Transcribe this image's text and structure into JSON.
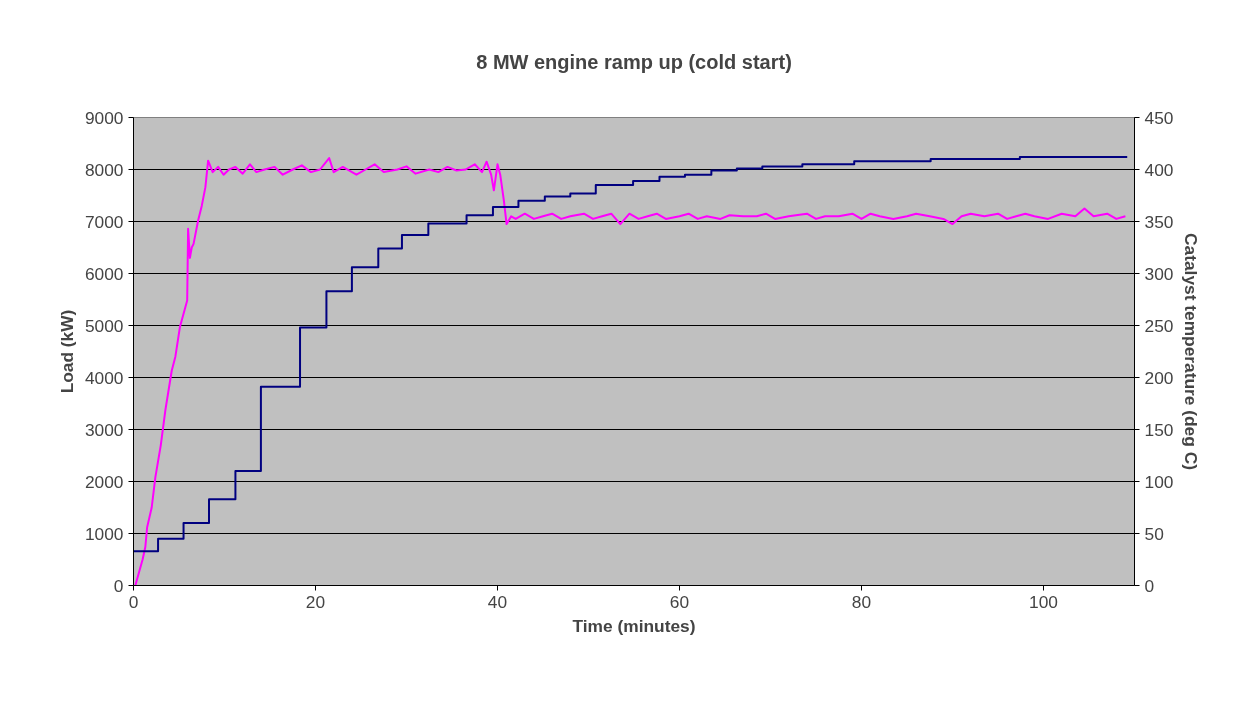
{
  "chart_data": {
    "type": "line",
    "title": "8 MW engine ramp up (cold start)",
    "xlabel": "Time (minutes)",
    "ylabel": "Load (kW)",
    "y2label": "Catalyst temperature (deg C)",
    "xlim": [
      0,
      110
    ],
    "xticks": [
      0,
      20,
      40,
      60,
      80,
      100
    ],
    "ylim": [
      0,
      9000
    ],
    "yticks": [
      0,
      1000,
      2000,
      3000,
      4000,
      5000,
      6000,
      7000,
      8000,
      9000
    ],
    "y2lim": [
      0,
      450
    ],
    "y2ticks": [
      0,
      50,
      100,
      150,
      200,
      250,
      300,
      350,
      400,
      450
    ],
    "grid": "y",
    "marker": "none",
    "line_style": "solid",
    "series": [
      {
        "color": "#ff00ff",
        "x": [
          0.2,
          0.6,
          1.0,
          1.3,
          1.5,
          2.0,
          2.4,
          3.0,
          3.5,
          4.2,
          4.6,
          5.1,
          5.9,
          6.0,
          6.2,
          6.4,
          6.6,
          7.1,
          7.5,
          7.9,
          8.2,
          8.7,
          9.3,
          9.9,
          10.5,
          11.2,
          12.0,
          12.8,
          13.5,
          14.4,
          15.5,
          16.4,
          17.5,
          18.5,
          19.5,
          20.5,
          21.5,
          22.0,
          23.0,
          24.5,
          25.5,
          26.5,
          27.5,
          29.0,
          30.0,
          31.0,
          32.5,
          33.5,
          34.5,
          35.5,
          36.5,
          37.5,
          38.3,
          38.8,
          39.3,
          39.6,
          40.0,
          40.3,
          40.7,
          41.0,
          41.5,
          42.0,
          43.0,
          44.0,
          45.0,
          46.0,
          47.0,
          48.0,
          49.5,
          50.5,
          51.5,
          52.5,
          53.5,
          54.5,
          55.5,
          56.5,
          57.5,
          58.5,
          60.0,
          61.0,
          62.0,
          63.0,
          64.5,
          65.5,
          67.0,
          68.5,
          69.5,
          70.5,
          72.0,
          74.0,
          75.0,
          76.0,
          77.5,
          79.0,
          80.0,
          81.0,
          82.0,
          83.5,
          85.0,
          86.0,
          87.5,
          89.0,
          90.0,
          91.0,
          92.0,
          93.5,
          95.0,
          96.0,
          97.0,
          98.0,
          99.0,
          100.5,
          102.0,
          103.5,
          104.5,
          105.5,
          107.0,
          108.0,
          109.0
        ],
        "values": [
          0,
          250,
          500,
          740,
          1120,
          1500,
          2080,
          2700,
          3370,
          4130,
          4400,
          4970,
          5480,
          6860,
          6300,
          6500,
          6570,
          7020,
          7300,
          7660,
          8170,
          7950,
          8050,
          7900,
          8000,
          8050,
          7920,
          8100,
          7950,
          8000,
          8050,
          7900,
          8000,
          8080,
          7950,
          8000,
          8220,
          7950,
          8050,
          7900,
          8000,
          8100,
          7950,
          8000,
          8060,
          7920,
          8000,
          7950,
          8050,
          7980,
          8000,
          8100,
          7950,
          8150,
          7900,
          7600,
          8100,
          7900,
          7400,
          6950,
          7100,
          7050,
          7150,
          7050,
          7100,
          7150,
          7050,
          7100,
          7150,
          7050,
          7100,
          7150,
          6950,
          7150,
          7050,
          7100,
          7150,
          7050,
          7100,
          7150,
          7050,
          7100,
          7050,
          7120,
          7100,
          7100,
          7150,
          7050,
          7100,
          7150,
          7050,
          7100,
          7100,
          7150,
          7050,
          7150,
          7100,
          7050,
          7100,
          7150,
          7100,
          7050,
          6950,
          7100,
          7150,
          7100,
          7150,
          7050,
          7100,
          7150,
          7100,
          7050,
          7150,
          7100,
          7250,
          7100,
          7150,
          7050,
          7100
        ]
      },
      {
        "type": "step",
        "axis": "y2",
        "color": "#000080",
        "x": [
          0,
          2.7,
          5.5,
          8.3,
          11.2,
          14.0,
          18.3,
          21.2,
          24.0,
          26.9,
          29.5,
          32.4,
          36.6,
          39.5,
          42.3,
          45.2,
          48.0,
          50.8,
          54.9,
          57.8,
          60.6,
          63.5,
          66.3,
          69.1,
          73.5,
          79.2,
          87.6,
          97.4,
          109.2
        ],
        "values": [
          33,
          45,
          60,
          83,
          110,
          191,
          248,
          283,
          306,
          324,
          337,
          348,
          356,
          364,
          370,
          374,
          377,
          385,
          389,
          393,
          395,
          399,
          401,
          403,
          405,
          408,
          410,
          412,
          412
        ]
      }
    ]
  }
}
